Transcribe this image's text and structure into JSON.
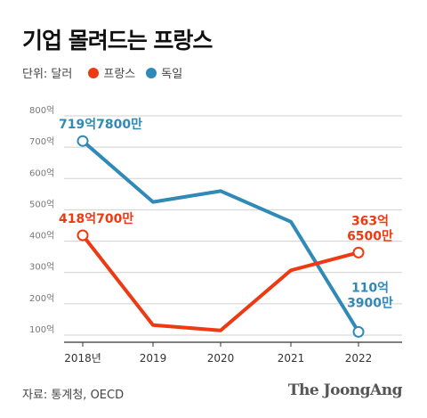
{
  "header": {
    "title": "기업 몰려드는 프랑스"
  },
  "legend": {
    "unit": "단위: 달러"
  },
  "source": "자료: 통계청, OECD",
  "logo": "The JoongAng",
  "colors": {
    "france": "#ee3a12",
    "germany": "#2f8ab8",
    "grid": "#d0d0d0"
  },
  "chart_data": {
    "type": "line",
    "title": "기업 몰려드는 프랑스",
    "unit": "단위: 달러",
    "categories": [
      "2018년",
      "2019",
      "2020",
      "2021",
      "2022"
    ],
    "ylim": [
      100,
      800
    ],
    "yticks": [
      {
        "value": 100,
        "label": "100억"
      },
      {
        "value": 200,
        "label": "200억"
      },
      {
        "value": 300,
        "label": "300억"
      },
      {
        "value": 400,
        "label": "400억"
      },
      {
        "value": 500,
        "label": "500억"
      },
      {
        "value": 600,
        "label": "600억"
      },
      {
        "value": 700,
        "label": "700억"
      },
      {
        "value": 800,
        "label": "800억"
      }
    ],
    "grid": true,
    "series": [
      {
        "name": "프랑스",
        "key": "france",
        "values": [
          418.7,
          132,
          115,
          307,
          363.65
        ],
        "labels": [
          {
            "index": 0,
            "lines": [
              "418억700만"
            ]
          },
          {
            "index": 4,
            "lines": [
              "363억",
              "6500만"
            ]
          }
        ]
      },
      {
        "name": "독일",
        "key": "germany",
        "values": [
          719.78,
          525,
          560,
          462,
          110.39
        ],
        "labels": [
          {
            "index": 0,
            "lines": [
              "719억7800만"
            ]
          },
          {
            "index": 4,
            "lines": [
              "110억",
              "3900만"
            ]
          }
        ]
      }
    ]
  }
}
